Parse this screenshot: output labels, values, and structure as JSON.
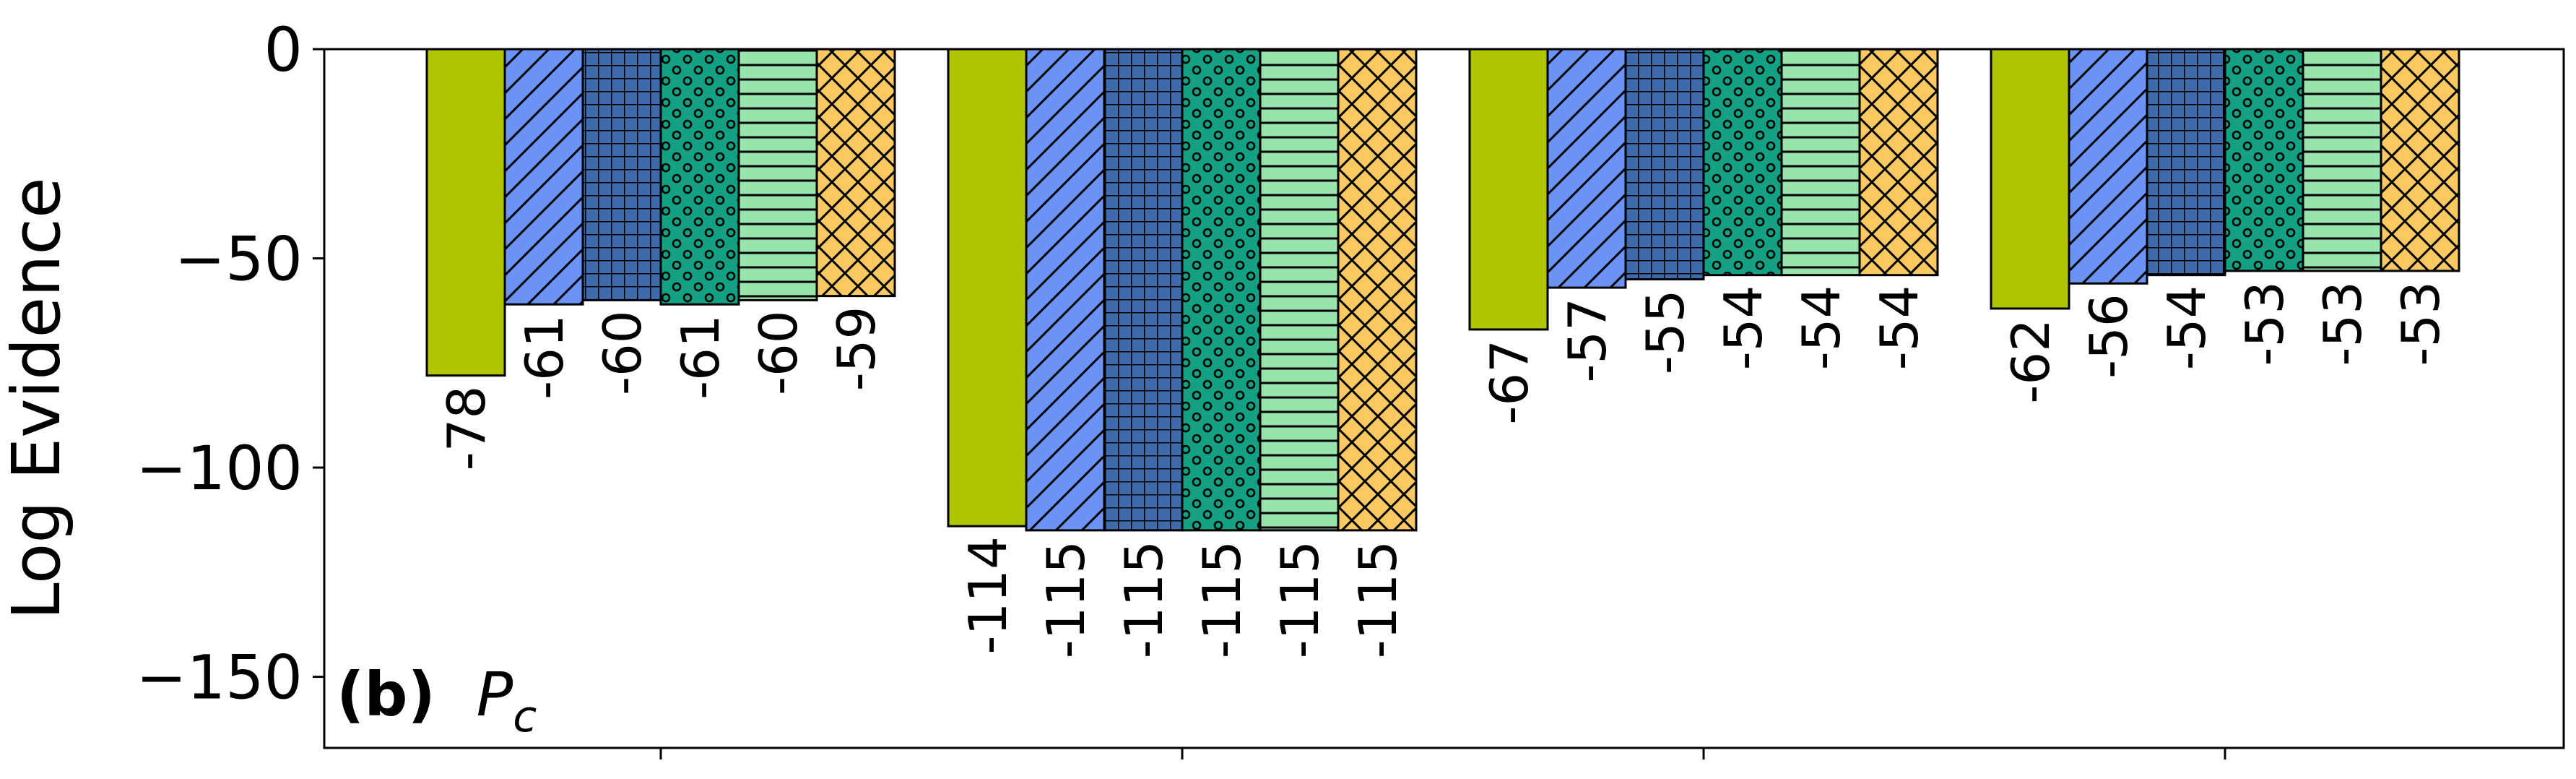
{
  "chart_data": {
    "type": "bar",
    "panel_label": "(b)",
    "panel_variable": "P",
    "panel_variable_subscript": "c",
    "ylabel": "Log Evidence",
    "ylim": [
      -167,
      0
    ],
    "yticks": [
      0,
      -50,
      -100,
      -150
    ],
    "ytick_labels": [
      "0",
      "−50",
      "−100",
      "−150"
    ],
    "grid": false,
    "legend": "none",
    "group_count": 4,
    "series": [
      {
        "values": [
          -78,
          -114,
          -67,
          -62
        ],
        "labels": [
          "-78",
          "-114",
          "-67",
          "-62"
        ],
        "color": "#afc600",
        "hatch": "none"
      },
      {
        "values": [
          -61,
          -115,
          -57,
          -56
        ],
        "labels": [
          "-61",
          "-115",
          "-57",
          "-56"
        ],
        "color": "#6a93f5",
        "hatch": "diagonal"
      },
      {
        "values": [
          -60,
          -115,
          -55,
          -54
        ],
        "labels": [
          "-60",
          "-115",
          "-55",
          "-54"
        ],
        "color": "#3f6bac",
        "hatch": "grid"
      },
      {
        "values": [
          -61,
          -115,
          -54,
          -53
        ],
        "labels": [
          "-61",
          "-115",
          "-54",
          "-53"
        ],
        "color": "#14a083",
        "hatch": "dots"
      },
      {
        "values": [
          -60,
          -115,
          -54,
          -53
        ],
        "labels": [
          "-60",
          "-115",
          "-54",
          "-53"
        ],
        "color": "#99e3ad",
        "hatch": "horizontal"
      },
      {
        "values": [
          -59,
          -115,
          -54,
          -53
        ],
        "labels": [
          "-59",
          "-115",
          "-54",
          "-53"
        ],
        "color": "#fbc962",
        "hatch": "crosshatch"
      }
    ]
  }
}
